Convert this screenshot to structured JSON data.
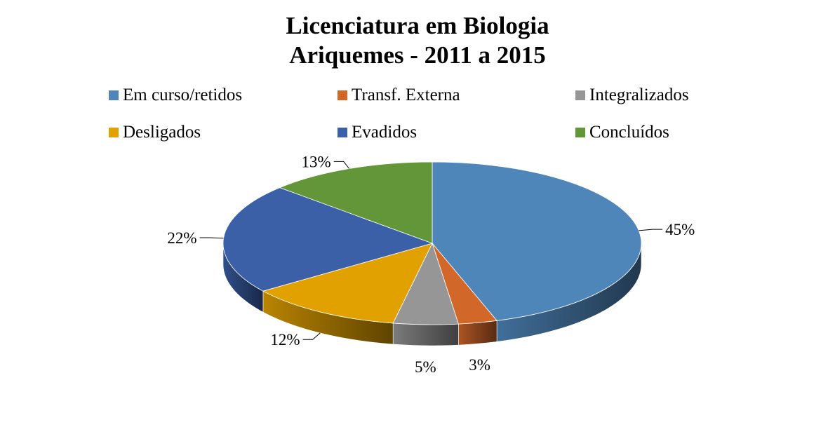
{
  "chart_data": {
    "type": "pie",
    "style": "3d",
    "title": "Licenciatura em Biologia",
    "subtitle": "Ariquemes - 2011 a 2015",
    "legend_position": "top",
    "slices": [
      {
        "label": "Em curso/retidos",
        "value": 45,
        "display": "45%",
        "color": "#4F86BA"
      },
      {
        "label": "Transf. Externa",
        "value": 3,
        "display": "3%",
        "color": "#D2672A"
      },
      {
        "label": "Integralizados",
        "value": 5,
        "display": "5%",
        "color": "#969696"
      },
      {
        "label": "Desligados",
        "value": 12,
        "display": "12%",
        "color": "#E1A100"
      },
      {
        "label": "Evadidos",
        "value": 22,
        "display": "22%",
        "color": "#3B60A8"
      },
      {
        "label": "Concluídos",
        "value": 13,
        "display": "13%",
        "color": "#629638"
      }
    ]
  }
}
